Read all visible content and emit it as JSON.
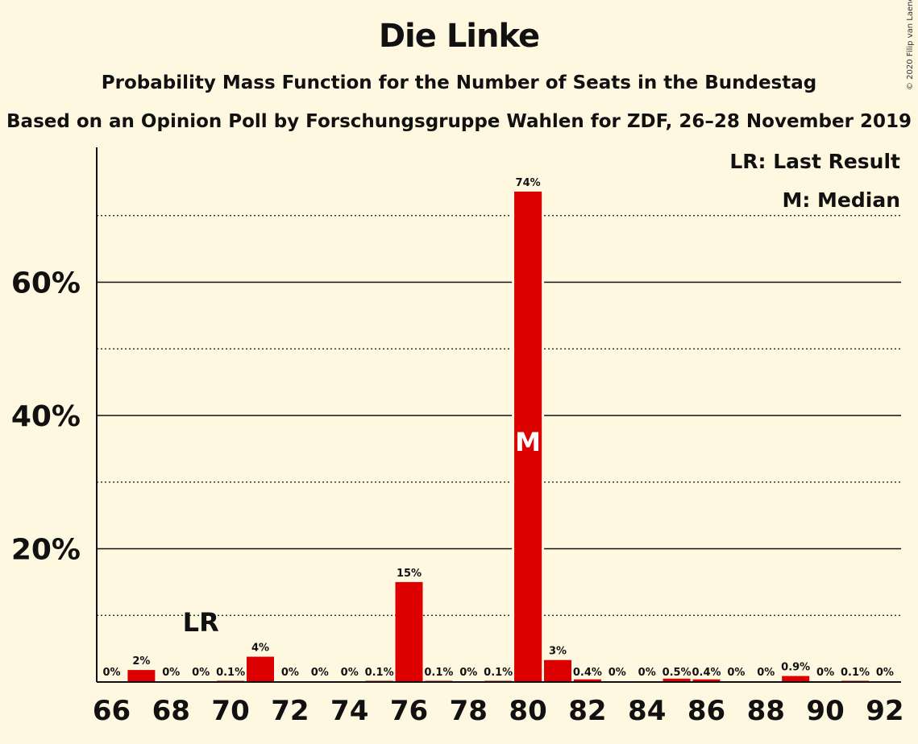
{
  "title": "Die Linke",
  "subtitle": "Probability Mass Function for the Number of Seats in the Bundestag",
  "subtitle2": "Based on an Opinion Poll by Forschungsgruppe Wahlen for ZDF, 26–28 November 2019",
  "copyright": "© 2020 Filip van Laenen",
  "colors": {
    "bar": "#dd0000",
    "background": "#fff8e1",
    "text": "#111111"
  },
  "chart_data": {
    "type": "bar",
    "x": [
      66,
      67,
      68,
      69,
      70,
      71,
      72,
      73,
      74,
      75,
      76,
      77,
      78,
      79,
      80,
      81,
      82,
      83,
      84,
      85,
      86,
      87,
      88,
      89,
      90,
      91,
      92
    ],
    "values": [
      0,
      1.8,
      0,
      0,
      0.1,
      3.8,
      0,
      0,
      0,
      0.1,
      15,
      0.1,
      0,
      0.1,
      73.6,
      3.3,
      0.4,
      0,
      0,
      0.5,
      0.4,
      0,
      0,
      0.9,
      0,
      0.1,
      0
    ],
    "labels": [
      "0%",
      "2%",
      "0%",
      "0%",
      "0.1%",
      "4%",
      "0%",
      "0%",
      "0%",
      "0.1%",
      "15%",
      "0.1%",
      "0%",
      "0.1%",
      "74%",
      "3%",
      "0.4%",
      "0%",
      "0%",
      "0.5%",
      "0.4%",
      "0%",
      "0%",
      "0.9%",
      "0%",
      "0.1%",
      "0%"
    ],
    "xticks": [
      66,
      68,
      70,
      72,
      74,
      76,
      78,
      80,
      82,
      84,
      86,
      88,
      90,
      92
    ],
    "yticks": [
      20,
      40,
      60
    ],
    "ytick_labels": [
      "20%",
      "40%",
      "60%"
    ],
    "ygrid_minor": [
      10,
      30,
      50,
      70
    ],
    "ylim": [
      0,
      80
    ],
    "last_result": {
      "seat": 69,
      "label": "LR"
    },
    "median": {
      "seat": 80,
      "label": "M"
    },
    "legend": [
      "LR: Last Result",
      "M: Median"
    ],
    "legend_position": "top-right"
  }
}
